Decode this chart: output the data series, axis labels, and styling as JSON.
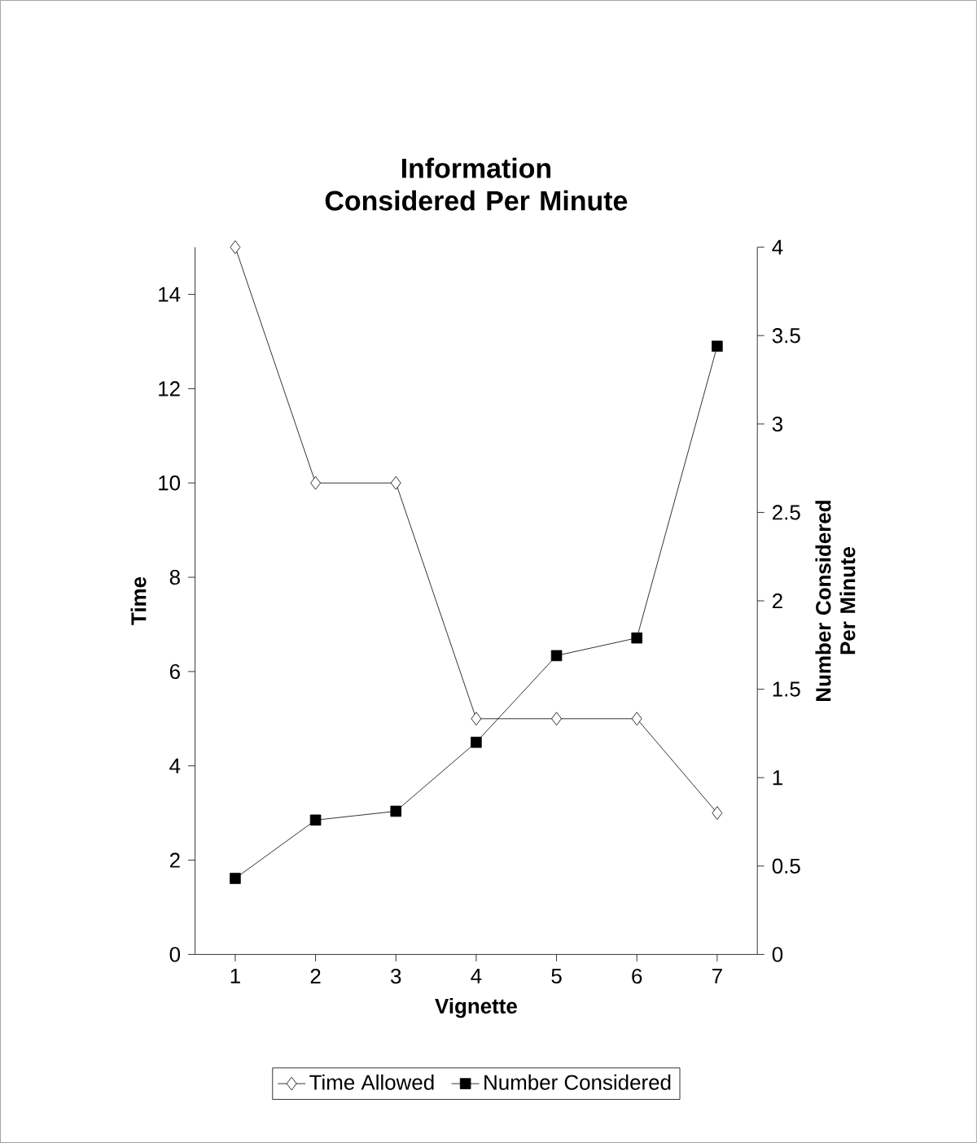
{
  "chart_data": {
    "type": "line",
    "title": "Information Considered Per Minute",
    "xlabel": "Vignette",
    "ylabel": "Time",
    "y2label": "Number Considered Per Minute",
    "categories": [
      "1",
      "2",
      "3",
      "4",
      "5",
      "6",
      "7"
    ],
    "series": [
      {
        "name": "Time Allowed",
        "color": "#000000",
        "marker": "diamond",
        "values": [
          15,
          10,
          10,
          5,
          5,
          5,
          3
        ]
      },
      {
        "name": "Number Considered",
        "color": "#000000",
        "marker": "square",
        "axis": "y2",
        "values": [
          0.43,
          0.76,
          0.81,
          1.2,
          1.69,
          1.79,
          3.44
        ]
      }
    ],
    "ylim": [
      0,
      15
    ],
    "yticks": [
      0,
      2,
      4,
      6,
      8,
      10,
      12,
      14
    ],
    "y2lim": [
      0,
      4
    ],
    "y2ticks": [
      0,
      0.5,
      1,
      1.5,
      2,
      2.5,
      3,
      3.5,
      4
    ],
    "grid": false,
    "legend": "bottom",
    "line_style": "solid"
  }
}
